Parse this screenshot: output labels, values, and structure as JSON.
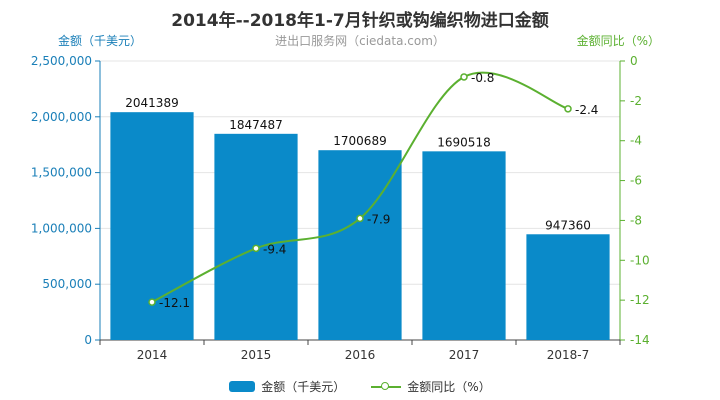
{
  "chart_data": {
    "type": "bar",
    "title": "2014年--2018年1-7月针织或钩编织物进口金额",
    "subtitle": "进出口服务网（ciedata.com）",
    "categories": [
      "2014",
      "2015",
      "2016",
      "2017",
      "2018-7"
    ],
    "y_left_label": "金额（千美元）",
    "y_right_label": "金额同比（%）",
    "y_left_ticks": [
      "0",
      "500,000",
      "1,000,000",
      "1,500,000",
      "2,000,000",
      "2,500,000"
    ],
    "y_right_ticks": [
      "0",
      "-2",
      "-4",
      "-6",
      "-8",
      "-10",
      "-12",
      "-14"
    ],
    "ylim_left": [
      0,
      2500000
    ],
    "ylim_right": [
      -14,
      0
    ],
    "series": [
      {
        "name": "金额（千美元）",
        "type": "bar",
        "axis": "left",
        "color": "#0a8ac9",
        "values": [
          2041389,
          1847487,
          1700689,
          1690518,
          947360
        ],
        "labels": [
          "2041389",
          "1847487",
          "1700689",
          "1690518",
          "947360"
        ]
      },
      {
        "name": "金额同比（%）",
        "type": "line",
        "axis": "right",
        "color": "#5bb030",
        "values": [
          -12.1,
          -9.4,
          -7.9,
          -0.8,
          -2.4
        ],
        "labels": [
          "-12.1",
          "-9.4",
          "-7.9",
          "-0.8",
          "-2.4"
        ]
      }
    ],
    "legend_position": "bottom",
    "grid": true
  }
}
